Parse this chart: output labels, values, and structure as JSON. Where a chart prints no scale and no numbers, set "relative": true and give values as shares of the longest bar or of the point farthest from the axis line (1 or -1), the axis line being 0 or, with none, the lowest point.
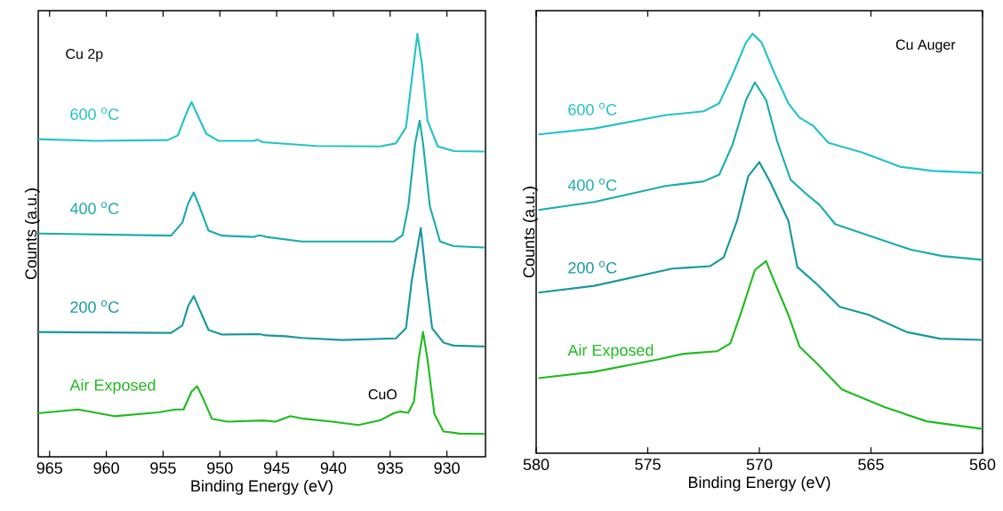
{
  "chart_data": [
    {
      "type": "line",
      "title": "Cu 2p",
      "xlabel": "Binding Energy (eV)",
      "ylabel": "Counts (a.u.)",
      "relative": true,
      "tick_labels": "x",
      "xlim": [
        966,
        926.6
      ],
      "xticks": [
        965,
        960,
        955,
        950,
        945,
        940,
        935,
        930
      ],
      "annotations": [
        "CuO"
      ],
      "series": [
        {
          "name": "600 $^{o}$C",
          "color": "#22c3c8",
          "x": [
            966.0,
            961.0,
            954.6,
            953.7,
            953.0,
            952.5,
            952.1,
            951.2,
            950.1,
            947.0,
            946.7,
            946.2,
            941.5,
            935.9,
            934.5,
            933.6,
            933.1,
            932.6,
            932.2,
            931.7,
            930.8,
            929.4,
            926.7
          ],
          "values": [
            0.751,
            0.747,
            0.749,
            0.76,
            0.809,
            0.839,
            0.816,
            0.764,
            0.747,
            0.747,
            0.75,
            0.744,
            0.735,
            0.734,
            0.741,
            0.779,
            0.891,
            1.0,
            0.929,
            0.794,
            0.734,
            0.723,
            0.722
          ]
        },
        {
          "name": "400 $^{o}$C",
          "color": "#1aacae",
          "x": [
            966.0,
            954.3,
            953.3,
            952.8,
            952.3,
            951.8,
            951.0,
            949.8,
            947.0,
            946.5,
            945.9,
            942.8,
            934.7,
            933.9,
            933.4,
            932.8,
            932.4,
            932.1,
            931.5,
            930.6,
            929.4,
            926.7
          ],
          "values": [
            0.528,
            0.523,
            0.554,
            0.599,
            0.625,
            0.592,
            0.535,
            0.523,
            0.52,
            0.524,
            0.52,
            0.509,
            0.509,
            0.524,
            0.592,
            0.741,
            0.795,
            0.741,
            0.592,
            0.509,
            0.498,
            0.495
          ]
        },
        {
          "name": "200 $^{o}$C",
          "color": "#16989e",
          "x": [
            966.0,
            954.3,
            953.3,
            952.8,
            952.3,
            951.8,
            951.0,
            949.8,
            946.5,
            945.9,
            944.2,
            942.8,
            939.2,
            934.5,
            933.6,
            933.1,
            932.3,
            931.8,
            931.3,
            930.3,
            929.4,
            926.7
          ],
          "values": [
            0.295,
            0.293,
            0.311,
            0.356,
            0.38,
            0.349,
            0.3,
            0.289,
            0.29,
            0.287,
            0.285,
            0.281,
            0.276,
            0.28,
            0.304,
            0.416,
            0.541,
            0.416,
            0.304,
            0.27,
            0.263,
            0.261
          ]
        },
        {
          "name": "Air Exposed",
          "color": "#1fbb1f",
          "x": [
            966.0,
            962.5,
            959.3,
            955.4,
            953.9,
            953.2,
            952.5,
            952.0,
            951.5,
            950.7,
            949.3,
            946.2,
            945.1,
            943.8,
            942.6,
            940.1,
            937.8,
            935.9,
            934.7,
            934.1,
            933.4,
            932.9,
            932.5,
            932.1,
            931.7,
            931.1,
            930.3,
            928.9,
            926.7
          ],
          "values": [
            0.103,
            0.112,
            0.096,
            0.105,
            0.112,
            0.112,
            0.154,
            0.167,
            0.139,
            0.09,
            0.083,
            0.086,
            0.083,
            0.096,
            0.09,
            0.083,
            0.075,
            0.086,
            0.103,
            0.107,
            0.104,
            0.131,
            0.229,
            0.295,
            0.229,
            0.101,
            0.06,
            0.055,
            0.054
          ]
        }
      ]
    },
    {
      "type": "line",
      "title": "Cu Auger",
      "xlabel": "Binding Energy (eV)",
      "ylabel": "Counts (a.u.)",
      "relative": true,
      "tick_labels": "x",
      "xlim": [
        580,
        560
      ],
      "xticks": [
        580,
        575,
        570,
        565,
        560
      ],
      "series": [
        {
          "name": "600 $^{o}$C",
          "color": "#22c3c8",
          "x": [
            579.9,
            577.4,
            574.2,
            572.5,
            571.8,
            571.2,
            570.6,
            570.3,
            569.9,
            569.3,
            568.7,
            568.2,
            567.6,
            566.9,
            565.4,
            563.7,
            562.2,
            560.0
          ],
          "values": [
            0.76,
            0.774,
            0.806,
            0.815,
            0.834,
            0.903,
            0.979,
            1.0,
            0.979,
            0.903,
            0.834,
            0.8,
            0.781,
            0.74,
            0.717,
            0.683,
            0.673,
            0.668
          ]
        },
        {
          "name": "400 $^{o}$C",
          "color": "#1aacae",
          "x": [
            579.9,
            577.4,
            574.2,
            572.5,
            571.8,
            571.2,
            570.6,
            570.2,
            569.7,
            569.2,
            568.6,
            567.9,
            567.3,
            566.6,
            565.1,
            563.2,
            561.8,
            560.0
          ],
          "values": [
            0.58,
            0.599,
            0.637,
            0.648,
            0.664,
            0.736,
            0.842,
            0.884,
            0.842,
            0.743,
            0.652,
            0.618,
            0.592,
            0.546,
            0.519,
            0.485,
            0.47,
            0.461
          ]
        },
        {
          "name": "200 $^{o}$C",
          "color": "#16989e",
          "x": [
            579.9,
            577.4,
            573.9,
            572.2,
            571.6,
            571.0,
            570.5,
            570.0,
            569.5,
            568.7,
            568.3,
            567.4,
            566.4,
            565.1,
            563.4,
            561.9,
            560.0
          ],
          "values": [
            0.383,
            0.399,
            0.44,
            0.446,
            0.467,
            0.554,
            0.66,
            0.694,
            0.645,
            0.554,
            0.444,
            0.402,
            0.349,
            0.33,
            0.289,
            0.273,
            0.27
          ]
        },
        {
          "name": "Air Exposed",
          "color": "#1fbb1f",
          "x": [
            579.9,
            577.4,
            574.5,
            573.4,
            571.9,
            571.3,
            570.8,
            570.2,
            569.7,
            569.3,
            568.7,
            568.2,
            567.4,
            566.3,
            564.4,
            562.5,
            560.0
          ],
          "values": [
            0.179,
            0.194,
            0.224,
            0.237,
            0.243,
            0.262,
            0.338,
            0.437,
            0.458,
            0.406,
            0.33,
            0.254,
            0.213,
            0.152,
            0.11,
            0.076,
            0.058
          ]
        }
      ]
    }
  ]
}
